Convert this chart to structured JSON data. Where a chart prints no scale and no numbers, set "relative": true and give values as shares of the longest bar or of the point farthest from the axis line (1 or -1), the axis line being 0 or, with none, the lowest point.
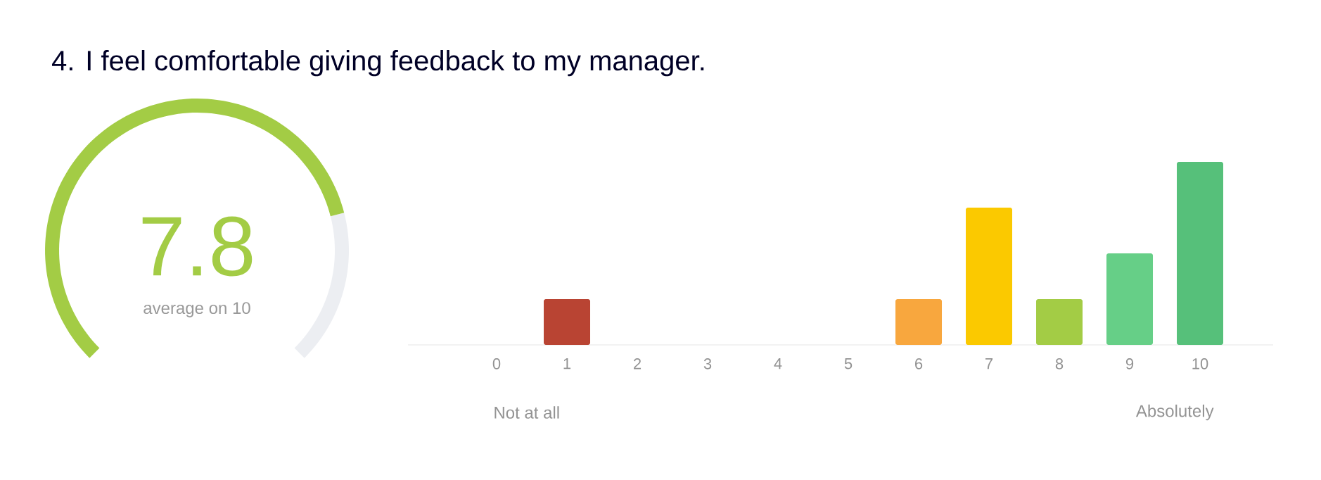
{
  "chart_data": [
    {
      "type": "donut",
      "title": "4. I feel comfortable giving feedback to my manager.",
      "categories": [
        null,
        null
      ],
      "values": [
        78,
        22
      ],
      "colors": [
        "#a3cc45",
        "#eceef2"
      ],
      "annotations": [
        "7.8",
        "average on 10"
      ]
    },
    {
      "type": "bar",
      "relative": true,
      "categories": [
        "0",
        "1",
        "2",
        "3",
        "4",
        "5",
        "6",
        "7",
        "8",
        "9",
        "10"
      ],
      "values": [
        0,
        0.25,
        0,
        0,
        0,
        0,
        0.25,
        0.75,
        0.25,
        0.5,
        1
      ],
      "colors": [
        null,
        "#b94433",
        null,
        null,
        null,
        null,
        "#f8a73e",
        "#fbc900",
        "#a3cc45",
        "#66cf87",
        "#56c07a"
      ],
      "annotations": [
        "Not at all",
        "Absolutely"
      ]
    }
  ]
}
